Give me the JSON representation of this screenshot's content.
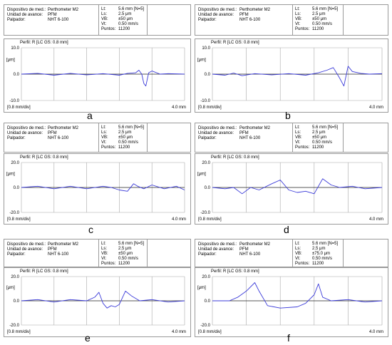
{
  "colors": {
    "trace": "#3b3bd9",
    "grid": "#a8a8a8",
    "zero": "#222222",
    "border": "#9a9a9a"
  },
  "panels": [
    {
      "letter": "a",
      "info": {
        "left": [
          [
            "Dispositivo de med.:",
            "Perthometer M2"
          ],
          [
            "Unidad de avance:",
            "PFM"
          ],
          [
            "Palpador:",
            "NHT 6-100"
          ]
        ],
        "right": [
          [
            "Lt:",
            "5.6 mm [N=5]"
          ],
          [
            "Ls:",
            "2.5 μm"
          ],
          [
            "VB:",
            "±50 μm"
          ],
          [
            "Vt:",
            "0.50 mm/s"
          ],
          [
            "Puntos:",
            "11200"
          ]
        ]
      },
      "plot_title": "Perfil: R [LC GS: 0.8 mm]",
      "unit_label": "[μm]",
      "scale_label": "[0.8 mm/div]",
      "length_label": "4.0 mm",
      "chart_data": {
        "type": "line",
        "title": "Perfil: R [LC GS: 0.8 mm]",
        "ylabel": "[μm]",
        "ylim": [
          -10,
          10
        ],
        "xlim": [
          0,
          4.0
        ],
        "y_ticks": [
          "10.0",
          "0.0",
          "-10.0"
        ],
        "y_tick_values": [
          10,
          0,
          -10
        ],
        "grid": true,
        "x": [
          0,
          0.4,
          0.8,
          1.2,
          1.6,
          2.0,
          2.4,
          2.6,
          2.8,
          2.88,
          2.95,
          3.0,
          3.05,
          3.12,
          3.2,
          3.4,
          3.6,
          4.0
        ],
        "y": [
          0,
          0.3,
          -0.4,
          0.3,
          -0.3,
          0.2,
          -0.4,
          0.3,
          0.5,
          1.5,
          0,
          -3.5,
          -4.5,
          0.5,
          1.2,
          0,
          0.2,
          0
        ]
      }
    },
    {
      "letter": "b",
      "info": {
        "left": [
          [
            "Dispositivo de med.:",
            "Perthometer M2"
          ],
          [
            "Unidad de avance:",
            "PFM"
          ],
          [
            "Palpador:",
            "NHT 6-100"
          ]
        ],
        "right": [
          [
            "Lt:",
            "5.6 mm [N=5]"
          ],
          [
            "Ls:",
            "2.5 μm"
          ],
          [
            "VB:",
            "±50 μm"
          ],
          [
            "Vt:",
            "0.50 mm/s"
          ],
          [
            "Puntos:",
            "11200"
          ]
        ]
      },
      "plot_title": "Perfil: R [LC GS: 0.8 mm]",
      "unit_label": "[μm]",
      "scale_label": "[0.8 mm/div]",
      "length_label": "4.0 mm",
      "chart_data": {
        "type": "line",
        "title": "Perfil: R [LC GS: 0.8 mm]",
        "ylabel": "[μm]",
        "ylim": [
          -10,
          10
        ],
        "xlim": [
          0,
          4.0
        ],
        "y_ticks": [
          "10.0",
          "0.0",
          "-10.0"
        ],
        "y_tick_values": [
          10,
          0,
          -10
        ],
        "grid": true,
        "x": [
          0,
          0.3,
          0.5,
          0.7,
          1.0,
          1.4,
          1.8,
          2.2,
          2.5,
          2.7,
          2.85,
          3.0,
          3.1,
          3.2,
          3.3,
          3.5,
          3.7,
          4.0
        ],
        "y": [
          0,
          -0.4,
          0.4,
          -0.6,
          0.2,
          -0.3,
          0.2,
          -0.4,
          0.5,
          1.5,
          2.5,
          -1.5,
          -4.5,
          3,
          1,
          0.3,
          0,
          0.2
        ]
      }
    },
    {
      "letter": "c",
      "info": {
        "left": [
          [
            "Dispositivo de med.:",
            "Perthometer M2"
          ],
          [
            "Unidad de avance:",
            "PFM"
          ],
          [
            "Palpador:",
            "NHT 6-100"
          ]
        ],
        "right": [
          [
            "Lt:",
            "5.6 mm [N=5]"
          ],
          [
            "Ls:",
            "2.5 μm"
          ],
          [
            "VB:",
            "±50 μm"
          ],
          [
            "Vt:",
            "0.50 mm/s"
          ],
          [
            "Puntos:",
            "11200"
          ]
        ]
      },
      "plot_title": "Perfil: R [LC GS: 0.8 mm]",
      "unit_label": "[μm]",
      "scale_label": "[0.8 mm/div]",
      "length_label": "4.0 mm",
      "chart_data": {
        "type": "line",
        "title": "Perfil: R [LC GS: 0.8 mm]",
        "ylabel": "[μm]",
        "ylim": [
          -20,
          20
        ],
        "xlim": [
          0,
          4.0
        ],
        "y_ticks": [
          "20.0",
          "0.0",
          "-20.0"
        ],
        "y_tick_values": [
          20,
          0,
          -20
        ],
        "grid": true,
        "x": [
          0,
          0.4,
          0.8,
          1.2,
          1.6,
          2.0,
          2.2,
          2.4,
          2.6,
          2.75,
          2.85,
          3.0,
          3.2,
          3.5,
          3.8,
          4.0
        ],
        "y": [
          0,
          1,
          -1,
          1,
          -1,
          1,
          0,
          -2,
          -3,
          3,
          1,
          -1,
          2,
          -1,
          1,
          -2
        ]
      }
    },
    {
      "letter": "d",
      "info": {
        "left": [
          [
            "Dispositivo de med.:",
            "Perthometer M2"
          ],
          [
            "Unidad de avance:",
            "PFM"
          ],
          [
            "Palpador:",
            "NHT 6-100"
          ]
        ],
        "right": [
          [
            "Lt:",
            "5.6 mm [N=5]"
          ],
          [
            "Ls:",
            "2.5 μm"
          ],
          [
            "VB:",
            "±50 μm"
          ],
          [
            "Vt:",
            "0.50 mm/s"
          ],
          [
            "Puntos:",
            "11200"
          ]
        ]
      },
      "plot_title": "Perfil: R [LC GS: 0.8 mm]",
      "unit_label": "[μm]",
      "scale_label": "[0.8 mm/div]",
      "length_label": "4.0 mm",
      "chart_data": {
        "type": "line",
        "title": "Perfil: R [LC GS: 0.8 mm]",
        "ylabel": "[μm]",
        "ylim": [
          -20,
          20
        ],
        "xlim": [
          0,
          4.0
        ],
        "y_ticks": [
          "20.0",
          "0.0",
          "-20.0"
        ],
        "y_tick_values": [
          20,
          0,
          -20
        ],
        "grid": true,
        "x": [
          0,
          0.3,
          0.5,
          0.7,
          0.9,
          1.1,
          1.4,
          1.6,
          1.8,
          2.0,
          2.2,
          2.4,
          2.6,
          2.8,
          3.0,
          3.3,
          3.6,
          4.0
        ],
        "y": [
          0,
          -1,
          0,
          -5,
          0,
          -2,
          3,
          6,
          -2,
          -4,
          -3,
          -5,
          7,
          2,
          0,
          1,
          -1,
          0
        ]
      }
    },
    {
      "letter": "e",
      "info": {
        "left": [
          [
            "Dispositivo de med.:",
            "Perthometer M2"
          ],
          [
            "Unidad de avance:",
            "PFM"
          ],
          [
            "Palpador:",
            "NHT 6-100"
          ]
        ],
        "right": [
          [
            "Lt:",
            "5.6 mm [N=5]"
          ],
          [
            "Ls:",
            "2.5 μm"
          ],
          [
            "VB:",
            "±50 μm"
          ],
          [
            "Vt:",
            "0.50 mm/s"
          ],
          [
            "Puntos:",
            "11200"
          ]
        ]
      },
      "plot_title": "Perfil: R [LC GS: 0.8 mm]",
      "unit_label": "[μm]",
      "scale_label": "[0.8 mm/div]",
      "length_label": "4.0 mm",
      "chart_data": {
        "type": "line",
        "title": "Perfil: R [LC GS: 0.8 mm]",
        "ylabel": "[μm]",
        "ylim": [
          -20,
          20
        ],
        "xlim": [
          0,
          4.0
        ],
        "y_ticks": [
          "20.0",
          "0.0",
          "-20.0"
        ],
        "y_tick_values": [
          20,
          0,
          -20
        ],
        "grid": true,
        "x": [
          0,
          0.4,
          0.8,
          1.2,
          1.6,
          1.8,
          1.9,
          2.0,
          2.1,
          2.2,
          2.3,
          2.4,
          2.55,
          2.7,
          2.9,
          3.2,
          3.6,
          4.0
        ],
        "y": [
          0,
          1,
          -1,
          1,
          0,
          3,
          7,
          -2,
          -6,
          -4,
          -5,
          -3,
          8,
          4,
          0,
          1,
          -1,
          0
        ]
      }
    },
    {
      "letter": "f",
      "info": {
        "left": [
          [
            "Dispositivo de med.:",
            "Perthometer M2"
          ],
          [
            "Unidad de avance:",
            "PFM"
          ],
          [
            "Palpador:",
            "NHT 6-100"
          ]
        ],
        "right": [
          [
            "Lt:",
            "5.6 mm [N=5]"
          ],
          [
            "Ls:",
            "2.5 μm"
          ],
          [
            "VB:",
            "±75.0 μm"
          ],
          [
            "Vt:",
            "0.50 mm/s"
          ],
          [
            "Puntos:",
            "11200"
          ]
        ]
      },
      "plot_title": "Perfil: R [LC GS: 0.8 mm]",
      "unit_label": "[μm]",
      "scale_label": "[0.8 mm/div]",
      "length_label": "4.0 mm",
      "chart_data": {
        "type": "line",
        "title": "Perfil: R [LC GS: 0.8 mm]",
        "ylabel": "[μm]",
        "ylim": [
          -20,
          20
        ],
        "xlim": [
          0,
          4.0
        ],
        "y_ticks": [
          "20.0",
          "0.0",
          "-20.0"
        ],
        "y_tick_values": [
          20,
          0,
          -20
        ],
        "grid": true,
        "x": [
          0,
          0.4,
          0.6,
          0.8,
          1.0,
          1.1,
          1.3,
          1.6,
          2.0,
          2.2,
          2.4,
          2.5,
          2.6,
          2.8,
          3.2,
          3.6,
          4.0
        ],
        "y": [
          0,
          0,
          3,
          8,
          15,
          8,
          -4,
          -6,
          -5,
          -2,
          5,
          14,
          3,
          0,
          1,
          -1,
          0
        ]
      }
    }
  ]
}
